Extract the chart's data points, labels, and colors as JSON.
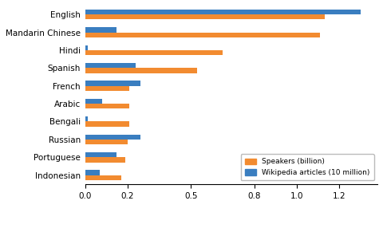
{
  "languages": [
    "English",
    "Mandarin Chinese",
    "Hindi",
    "Spanish",
    "French",
    "Arabic",
    "Bengali",
    "Russian",
    "Portuguese",
    "Indonesian"
  ],
  "speakers_billion": [
    1.13,
    1.11,
    0.65,
    0.53,
    0.21,
    0.21,
    0.21,
    0.2,
    0.19,
    0.17
  ],
  "wikipedia_10million": [
    1.3,
    0.15,
    0.015,
    0.24,
    0.26,
    0.08,
    0.015,
    0.26,
    0.15,
    0.07
  ],
  "speaker_color": "#F28B30",
  "wiki_color": "#3A7EC0",
  "xticks": [
    0,
    0.2,
    0.5,
    0.8,
    1.0,
    1.2
  ],
  "xlim": [
    0,
    1.38
  ],
  "bar_height": 0.28,
  "legend_speakers": "Speakers (billion)",
  "legend_wiki": "Wikipedia articles (10 million)",
  "footnote_color": "#666666",
  "bg_color": "#ffffff"
}
